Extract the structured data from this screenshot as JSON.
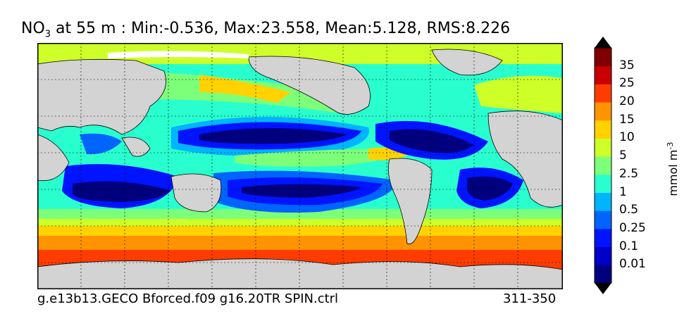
{
  "title": {
    "species_main": "NO",
    "species_sub": "3",
    "rest": " at 55 m : Min:-0.536, Max:23.558, Mean:5.128, RMS:8.226"
  },
  "footer": {
    "run_name": "g.e13b13.GECO Bforced.f09 g16.20TR SPIN.ctrl",
    "years": "311-350"
  },
  "colorbar": {
    "unit_main": "mmol m",
    "unit_exp": "-3",
    "tick_labels": [
      "35",
      "25",
      "20",
      "15",
      "10",
      "5",
      "2.5",
      "1",
      "0.5",
      "0.25",
      "0.1",
      "0.01"
    ],
    "colors": [
      "#00007f",
      "#0000c8",
      "#0014ff",
      "#0064ff",
      "#00b4ff",
      "#29ffce",
      "#7dff7a",
      "#ceff29",
      "#ffd200",
      "#ff9400",
      "#ff3c00",
      "#c80000",
      "#7f0000"
    ],
    "under_color": "#000000",
    "over_color": "#000000"
  },
  "map": {
    "land_color": "#d3d3d3",
    "ice_color": "#ffffff"
  }
}
